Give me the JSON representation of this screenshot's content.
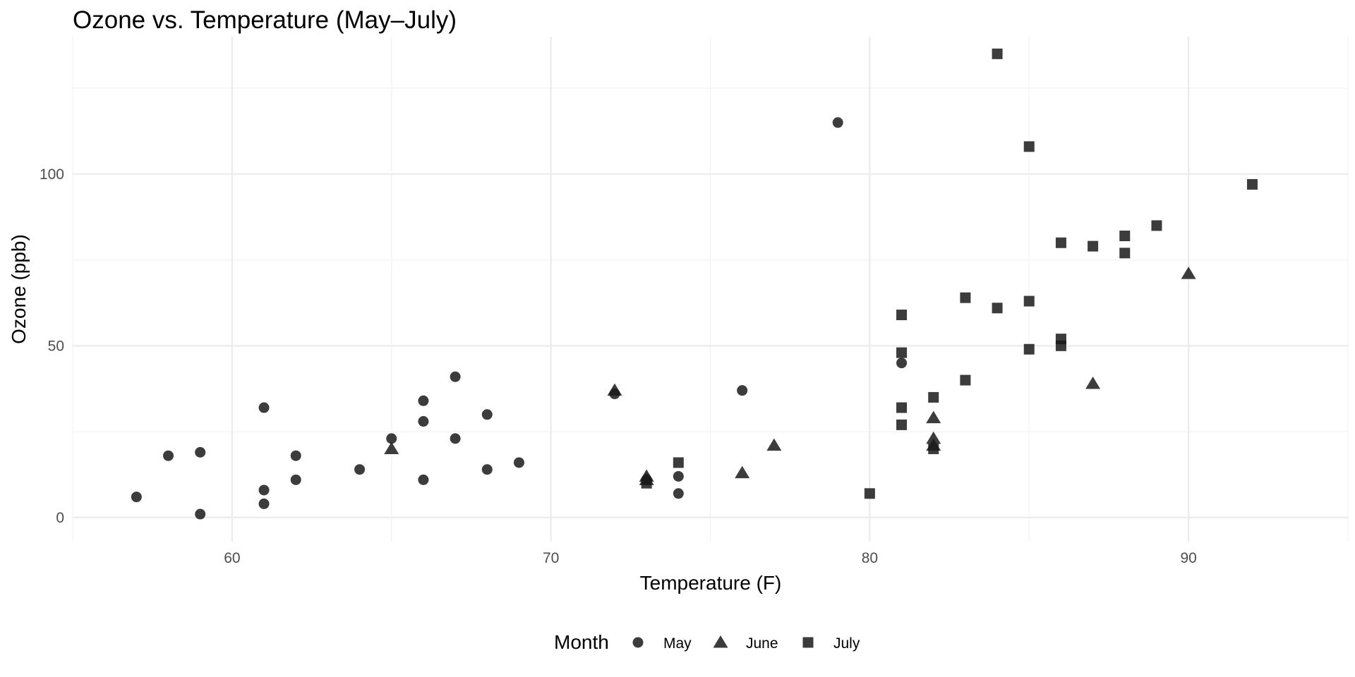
{
  "chart_data": {
    "type": "scatter",
    "title": "Ozone vs. Temperature (May–July)",
    "xlabel": "Temperature (F)",
    "ylabel": "Ozone (ppb)",
    "xlim": [
      55,
      95
    ],
    "ylim": [
      -7,
      140
    ],
    "x_ticks": [
      60,
      70,
      80,
      90
    ],
    "y_ticks": [
      0,
      50,
      100
    ],
    "grid": true,
    "legend": {
      "title": "Month",
      "position": "bottom",
      "entries": [
        {
          "name": "May",
          "shape": "circle"
        },
        {
          "name": "June",
          "shape": "triangle"
        },
        {
          "name": "July",
          "shape": "square"
        }
      ]
    },
    "colors": {
      "points": "#1a1a1a",
      "grid": "#ebebeb"
    },
    "series": [
      {
        "name": "May",
        "shape": "circle",
        "points": [
          {
            "x": 57,
            "y": 6
          },
          {
            "x": 58,
            "y": 18
          },
          {
            "x": 59,
            "y": 19
          },
          {
            "x": 59,
            "y": 1
          },
          {
            "x": 61,
            "y": 32
          },
          {
            "x": 61,
            "y": 8
          },
          {
            "x": 61,
            "y": 4
          },
          {
            "x": 62,
            "y": 18
          },
          {
            "x": 62,
            "y": 11
          },
          {
            "x": 64,
            "y": 14
          },
          {
            "x": 65,
            "y": 23
          },
          {
            "x": 66,
            "y": 34
          },
          {
            "x": 66,
            "y": 28
          },
          {
            "x": 66,
            "y": 11
          },
          {
            "x": 67,
            "y": 41
          },
          {
            "x": 67,
            "y": 23
          },
          {
            "x": 68,
            "y": 30
          },
          {
            "x": 68,
            "y": 14
          },
          {
            "x": 69,
            "y": 16
          },
          {
            "x": 72,
            "y": 36
          },
          {
            "x": 73,
            "y": 11
          },
          {
            "x": 74,
            "y": 12
          },
          {
            "x": 74,
            "y": 7
          },
          {
            "x": 76,
            "y": 37
          },
          {
            "x": 79,
            "y": 115
          },
          {
            "x": 81,
            "y": 45
          }
        ]
      },
      {
        "name": "June",
        "shape": "triangle",
        "points": [
          {
            "x": 65,
            "y": 20
          },
          {
            "x": 72,
            "y": 37
          },
          {
            "x": 73,
            "y": 12
          },
          {
            "x": 73,
            "y": 11
          },
          {
            "x": 76,
            "y": 13
          },
          {
            "x": 77,
            "y": 21
          },
          {
            "x": 82,
            "y": 29
          },
          {
            "x": 82,
            "y": 23
          },
          {
            "x": 82,
            "y": 21
          },
          {
            "x": 87,
            "y": 39
          },
          {
            "x": 90,
            "y": 71
          }
        ]
      },
      {
        "name": "July",
        "shape": "square",
        "points": [
          {
            "x": 73,
            "y": 10
          },
          {
            "x": 74,
            "y": 16
          },
          {
            "x": 80,
            "y": 7
          },
          {
            "x": 81,
            "y": 59
          },
          {
            "x": 81,
            "y": 48
          },
          {
            "x": 81,
            "y": 32
          },
          {
            "x": 81,
            "y": 27
          },
          {
            "x": 82,
            "y": 35
          },
          {
            "x": 82,
            "y": 20
          },
          {
            "x": 83,
            "y": 64
          },
          {
            "x": 83,
            "y": 40
          },
          {
            "x": 84,
            "y": 135
          },
          {
            "x": 84,
            "y": 61
          },
          {
            "x": 85,
            "y": 108
          },
          {
            "x": 85,
            "y": 63
          },
          {
            "x": 85,
            "y": 49
          },
          {
            "x": 86,
            "y": 80
          },
          {
            "x": 86,
            "y": 52
          },
          {
            "x": 86,
            "y": 50
          },
          {
            "x": 87,
            "y": 79
          },
          {
            "x": 88,
            "y": 82
          },
          {
            "x": 88,
            "y": 77
          },
          {
            "x": 89,
            "y": 85
          },
          {
            "x": 92,
            "y": 97
          }
        ]
      }
    ]
  }
}
